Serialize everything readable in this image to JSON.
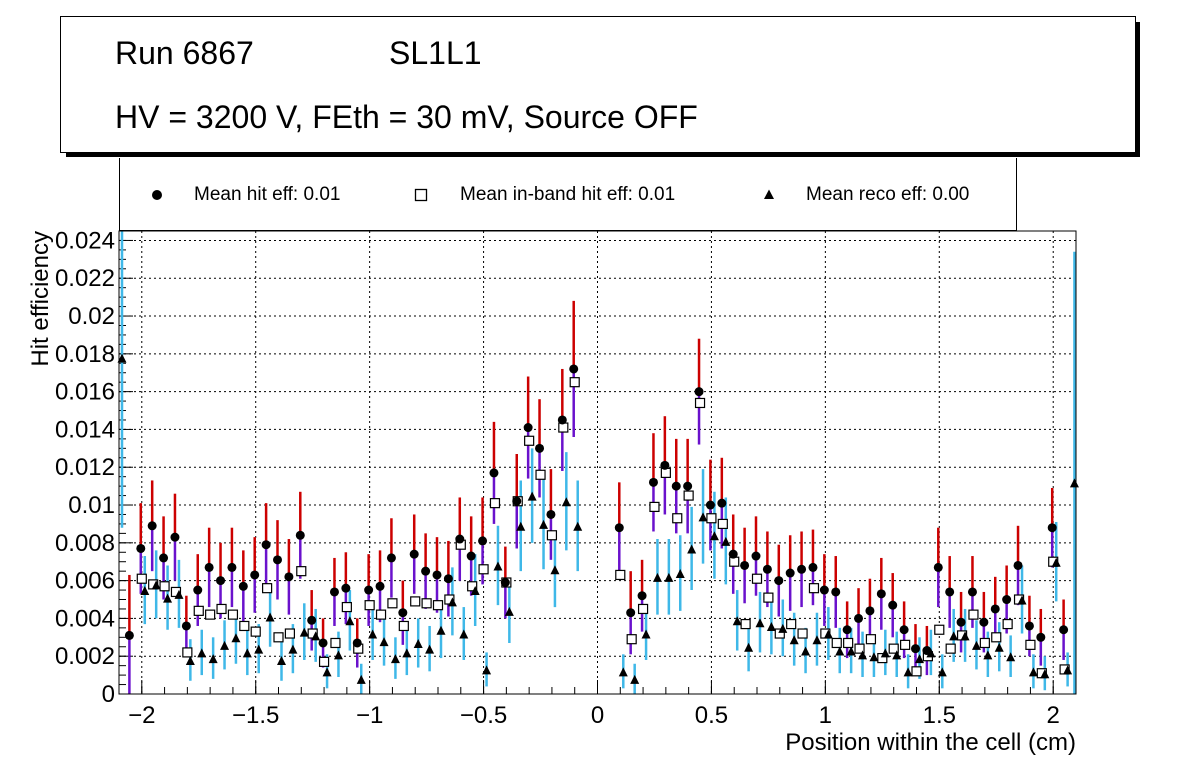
{
  "header": {
    "run": "Run 6867",
    "layer": "SL1L1",
    "conditions": "HV = 3200 V, FEth = 30 mV, Source OFF"
  },
  "legend": {
    "hit": "Mean hit  eff: 0.01",
    "inband": "Mean in-band hit eff: 0.01",
    "reco": "Mean reco eff: 0.00"
  },
  "chart_data": {
    "type": "scatter",
    "title": "",
    "xlabel": "Position within the cell (cm)",
    "ylabel": "Hit efficiency",
    "xlim": [
      -2.1,
      2.1
    ],
    "ylim": [
      0,
      0.0245
    ],
    "x_ticks": [
      -2,
      -1.5,
      -1,
      -0.5,
      0,
      0.5,
      1,
      1.5,
      2
    ],
    "x_tick_labels": [
      "−2",
      "−1.5",
      "−1",
      "−0.5",
      "0",
      "0.5",
      "1",
      "1.5",
      "2"
    ],
    "y_ticks": [
      0,
      0.002,
      0.004,
      0.006,
      0.008,
      0.01,
      0.012,
      0.014,
      0.016,
      0.018,
      0.02,
      0.022,
      0.024
    ],
    "y_tick_labels": [
      "0",
      "0.002",
      "0.004",
      "0.006",
      "0.008",
      "0.01",
      "0.012",
      "0.014",
      "0.016",
      "0.018",
      "0.02",
      "0.022",
      "0.024"
    ],
    "grid": true,
    "colors": {
      "hit_marker": "#000000",
      "hit_err_high": "#cc0000",
      "hit_err_low": "#6a11cc",
      "reco_err": "#3fb8e8"
    },
    "series": [
      {
        "name": "Mean hit  eff: 0.01",
        "marker": "circle",
        "x": [
          -2.05,
          -2.0,
          -1.95,
          -1.9,
          -1.85,
          -1.8,
          -1.75,
          -1.7,
          -1.65,
          -1.6,
          -1.55,
          -1.5,
          -1.45,
          -1.4,
          -1.35,
          -1.3,
          -1.25,
          -1.2,
          -1.15,
          -1.1,
          -1.05,
          -1.0,
          -0.95,
          -0.9,
          -0.85,
          -0.8,
          -0.75,
          -0.7,
          -0.65,
          -0.6,
          -0.55,
          -0.5,
          -0.45,
          -0.4,
          -0.35,
          -0.3,
          -0.25,
          -0.2,
          -0.15,
          -0.1,
          0.1,
          0.15,
          0.2,
          0.25,
          0.3,
          0.35,
          0.4,
          0.45,
          0.5,
          0.55,
          0.6,
          0.65,
          0.7,
          0.75,
          0.8,
          0.85,
          0.9,
          0.95,
          1.0,
          1.05,
          1.1,
          1.15,
          1.2,
          1.25,
          1.3,
          1.35,
          1.4,
          1.45,
          1.5,
          1.55,
          1.6,
          1.65,
          1.7,
          1.75,
          1.8,
          1.85,
          1.9,
          1.95,
          2.0,
          2.05
        ],
        "y": [
          0.0031,
          0.0077,
          0.0089,
          0.0072,
          0.0083,
          0.0036,
          0.0055,
          0.0067,
          0.006,
          0.0067,
          0.0057,
          0.0063,
          0.0079,
          0.0071,
          0.0062,
          0.0084,
          0.0039,
          0.0027,
          0.0054,
          0.0056,
          0.0027,
          0.0055,
          0.0057,
          0.0072,
          0.0043,
          0.0074,
          0.0065,
          0.0063,
          0.0061,
          0.0082,
          0.0073,
          0.0081,
          0.0117,
          0.0059,
          0.0102,
          0.0141,
          0.013,
          0.0095,
          0.0145,
          0.0172,
          0.0088,
          0.0043,
          0.0052,
          0.0112,
          0.0121,
          0.011,
          0.011,
          0.016,
          0.01,
          0.0101,
          0.0074,
          0.0068,
          0.0073,
          0.0066,
          0.006,
          0.0064,
          0.0066,
          0.0067,
          0.0055,
          0.0054,
          0.0034,
          0.004,
          0.0044,
          0.0053,
          0.0047,
          0.0034,
          0.0024,
          0.0023,
          0.0067,
          0.0054,
          0.0038,
          0.0054,
          0.0038,
          0.0045,
          0.005,
          0.0068,
          0.0036,
          0.003,
          0.0088,
          0.0034
        ],
        "err": [
          0.0032,
          0.0024,
          0.0024,
          0.0022,
          0.0023,
          0.0016,
          0.0019,
          0.0021,
          0.002,
          0.0021,
          0.0019,
          0.002,
          0.0022,
          0.0021,
          0.002,
          0.0023,
          0.0016,
          0.0013,
          0.0018,
          0.0019,
          0.0013,
          0.0019,
          0.0019,
          0.0021,
          0.0017,
          0.0021,
          0.002,
          0.002,
          0.002,
          0.0022,
          0.0021,
          0.0023,
          0.0027,
          0.0019,
          0.0025,
          0.0027,
          0.0026,
          0.0024,
          0.0027,
          0.0036,
          0.0024,
          0.0022,
          0.0019,
          0.0026,
          0.0026,
          0.0025,
          0.0025,
          0.0028,
          0.0024,
          0.0024,
          0.0021,
          0.002,
          0.0021,
          0.002,
          0.0019,
          0.002,
          0.002,
          0.002,
          0.0019,
          0.0019,
          0.0015,
          0.0016,
          0.0017,
          0.0019,
          0.0017,
          0.0015,
          0.0013,
          0.0013,
          0.0021,
          0.0019,
          0.0016,
          0.0019,
          0.0016,
          0.0017,
          0.0018,
          0.0021,
          0.0016,
          0.0015,
          0.0021,
          0.0016
        ]
      },
      {
        "name": "Mean in-band hit eff: 0.01",
        "marker": "open-square",
        "x": [
          -2.05,
          -2.0,
          -1.95,
          -1.9,
          -1.85,
          -1.8,
          -1.75,
          -1.7,
          -1.65,
          -1.6,
          -1.55,
          -1.5,
          -1.45,
          -1.4,
          -1.35,
          -1.3,
          -1.25,
          -1.2,
          -1.15,
          -1.1,
          -1.05,
          -1.0,
          -0.95,
          -0.9,
          -0.85,
          -0.8,
          -0.75,
          -0.7,
          -0.65,
          -0.6,
          -0.55,
          -0.5,
          -0.45,
          -0.4,
          -0.35,
          -0.3,
          -0.25,
          -0.2,
          -0.15,
          -0.1,
          0.1,
          0.15,
          0.2,
          0.25,
          0.3,
          0.35,
          0.4,
          0.45,
          0.5,
          0.55,
          0.6,
          0.65,
          0.7,
          0.75,
          0.8,
          0.85,
          0.9,
          0.95,
          1.0,
          1.05,
          1.1,
          1.15,
          1.2,
          1.25,
          1.3,
          1.35,
          1.4,
          1.45,
          1.5,
          1.55,
          1.6,
          1.65,
          1.7,
          1.75,
          1.8,
          1.85,
          1.9,
          1.95,
          2.0,
          2.05
        ],
        "y": [
          0.0,
          0.0061,
          0.0058,
          0.0057,
          0.0054,
          0.0022,
          0.0044,
          0.0042,
          0.0045,
          0.0042,
          0.0036,
          0.0033,
          0.0056,
          0.003,
          0.0032,
          0.0065,
          0.0032,
          0.0017,
          0.0027,
          0.0046,
          0.0024,
          0.0047,
          0.0042,
          0.0048,
          0.0036,
          0.0049,
          0.0048,
          0.0047,
          0.005,
          0.0079,
          0.0057,
          0.0066,
          0.0101,
          0.0059,
          0.0102,
          0.0134,
          0.0116,
          0.0084,
          0.0141,
          0.0165,
          0.0063,
          0.0029,
          0.0045,
          0.0099,
          0.0117,
          0.0093,
          0.0105,
          0.0154,
          0.0093,
          0.009,
          0.007,
          0.0037,
          0.0061,
          0.0051,
          0.0032,
          0.0037,
          0.0032,
          0.0056,
          0.0032,
          0.0027,
          0.0027,
          0.0024,
          0.0029,
          0.0019,
          0.0024,
          0.0026,
          0.0012,
          0.002,
          0.0034,
          0.0024,
          0.0031,
          0.0042,
          0.0027,
          0.003,
          0.0037,
          0.005,
          0.0026,
          0.0011,
          0.007,
          0.0013
        ],
        "err": []
      },
      {
        "name": "Mean reco eff: 0.00",
        "marker": "triangle",
        "x": [
          -2.1,
          -2.0,
          -1.95,
          -1.9,
          -1.85,
          -1.8,
          -1.75,
          -1.7,
          -1.65,
          -1.6,
          -1.55,
          -1.5,
          -1.45,
          -1.4,
          -1.35,
          -1.3,
          -1.25,
          -1.2,
          -1.15,
          -1.1,
          -1.05,
          -1.0,
          -0.95,
          -0.9,
          -0.85,
          -0.8,
          -0.75,
          -0.7,
          -0.65,
          -0.6,
          -0.55,
          -0.5,
          -0.45,
          -0.4,
          -0.35,
          -0.3,
          -0.25,
          -0.2,
          -0.15,
          -0.1,
          0.1,
          0.15,
          0.2,
          0.25,
          0.3,
          0.35,
          0.4,
          0.45,
          0.5,
          0.55,
          0.6,
          0.65,
          0.7,
          0.75,
          0.8,
          0.85,
          0.9,
          0.95,
          1.0,
          1.05,
          1.1,
          1.15,
          1.2,
          1.25,
          1.3,
          1.35,
          1.4,
          1.45,
          1.5,
          1.55,
          1.6,
          1.65,
          1.7,
          1.75,
          1.8,
          1.85,
          1.9,
          1.95,
          2.0,
          2.05,
          2.08
        ],
        "y": [
          0.0178,
          0.0055,
          0.0058,
          0.0051,
          0.0053,
          0.0018,
          0.0022,
          0.0019,
          0.0026,
          0.003,
          0.0022,
          0.0024,
          0.0041,
          0.0018,
          0.0024,
          0.0033,
          0.0031,
          0.0012,
          0.0021,
          0.0039,
          0.0008,
          0.0032,
          0.0028,
          0.0019,
          0.0022,
          0.0027,
          0.0024,
          0.0034,
          0.0049,
          0.0032,
          0.0055,
          0.0013,
          0.0068,
          0.0044,
          0.0089,
          0.0105,
          0.009,
          0.0066,
          0.0102,
          0.0089,
          0.0012,
          0.0008,
          0.0032,
          0.0062,
          0.0062,
          0.0064,
          0.0077,
          0.0094,
          0.0084,
          0.0081,
          0.0039,
          0.0025,
          0.0038,
          0.0036,
          0.0035,
          0.0029,
          0.0023,
          0.0029,
          0.0032,
          0.0023,
          0.0023,
          0.0021,
          0.002,
          0.0022,
          0.0021,
          0.0012,
          0.0019,
          0.0022,
          0.0012,
          0.0031,
          0.0031,
          0.0026,
          0.0021,
          0.0025,
          0.002,
          0.005,
          0.0012,
          0.0011,
          0.007,
          0.0013,
          0.0112
        ],
        "err": [
          0.009,
          0.0018,
          0.0018,
          0.0017,
          0.0018,
          0.0011,
          0.0012,
          0.0011,
          0.0013,
          0.0014,
          0.0012,
          0.0013,
          0.0016,
          0.0011,
          0.0013,
          0.0015,
          0.0014,
          0.0009,
          0.0012,
          0.0016,
          0.0008,
          0.0014,
          0.0013,
          0.0011,
          0.0012,
          0.0013,
          0.0012,
          0.0015,
          0.0018,
          0.0014,
          0.0019,
          0.0009,
          0.0021,
          0.0017,
          0.0024,
          0.0025,
          0.0024,
          0.002,
          0.0026,
          0.0024,
          0.0009,
          0.0008,
          0.0014,
          0.002,
          0.002,
          0.002,
          0.0022,
          0.0025,
          0.0023,
          0.0023,
          0.0016,
          0.0013,
          0.0016,
          0.0015,
          0.0015,
          0.0014,
          0.0012,
          0.0014,
          0.0014,
          0.0012,
          0.0012,
          0.0012,
          0.0011,
          0.0012,
          0.0012,
          0.0009,
          0.0011,
          0.0012,
          0.0009,
          0.0014,
          0.0014,
          0.0013,
          0.0012,
          0.0013,
          0.0011,
          0.0018,
          0.0009,
          0.0009,
          0.0021,
          0.0009,
          0.0122
        ]
      }
    ]
  }
}
